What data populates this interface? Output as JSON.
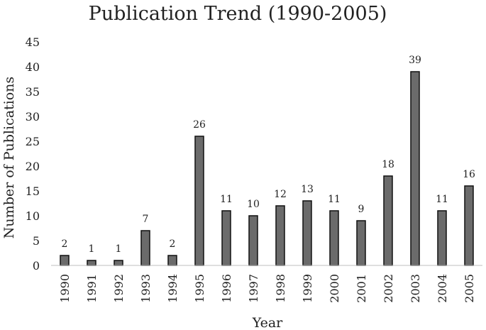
{
  "chart_data": {
    "type": "bar",
    "title": "Publication Trend (1990-2005)",
    "xlabel": "Year",
    "ylabel": "Number of Publications",
    "ylim": [
      0,
      45
    ],
    "ytick_step": 5,
    "grid": false,
    "legend": "none",
    "bar_color": "#6b6b6b",
    "bar_stroke": "#111111",
    "categories": [
      "1990",
      "1991",
      "1992",
      "1993",
      "1994",
      "1995",
      "1996",
      "1997",
      "1998",
      "1999",
      "2000",
      "2001",
      "2002",
      "2003",
      "2004",
      "2005"
    ],
    "values": [
      2,
      1,
      1,
      7,
      2,
      26,
      11,
      10,
      12,
      13,
      11,
      9,
      18,
      39,
      11,
      16
    ]
  }
}
